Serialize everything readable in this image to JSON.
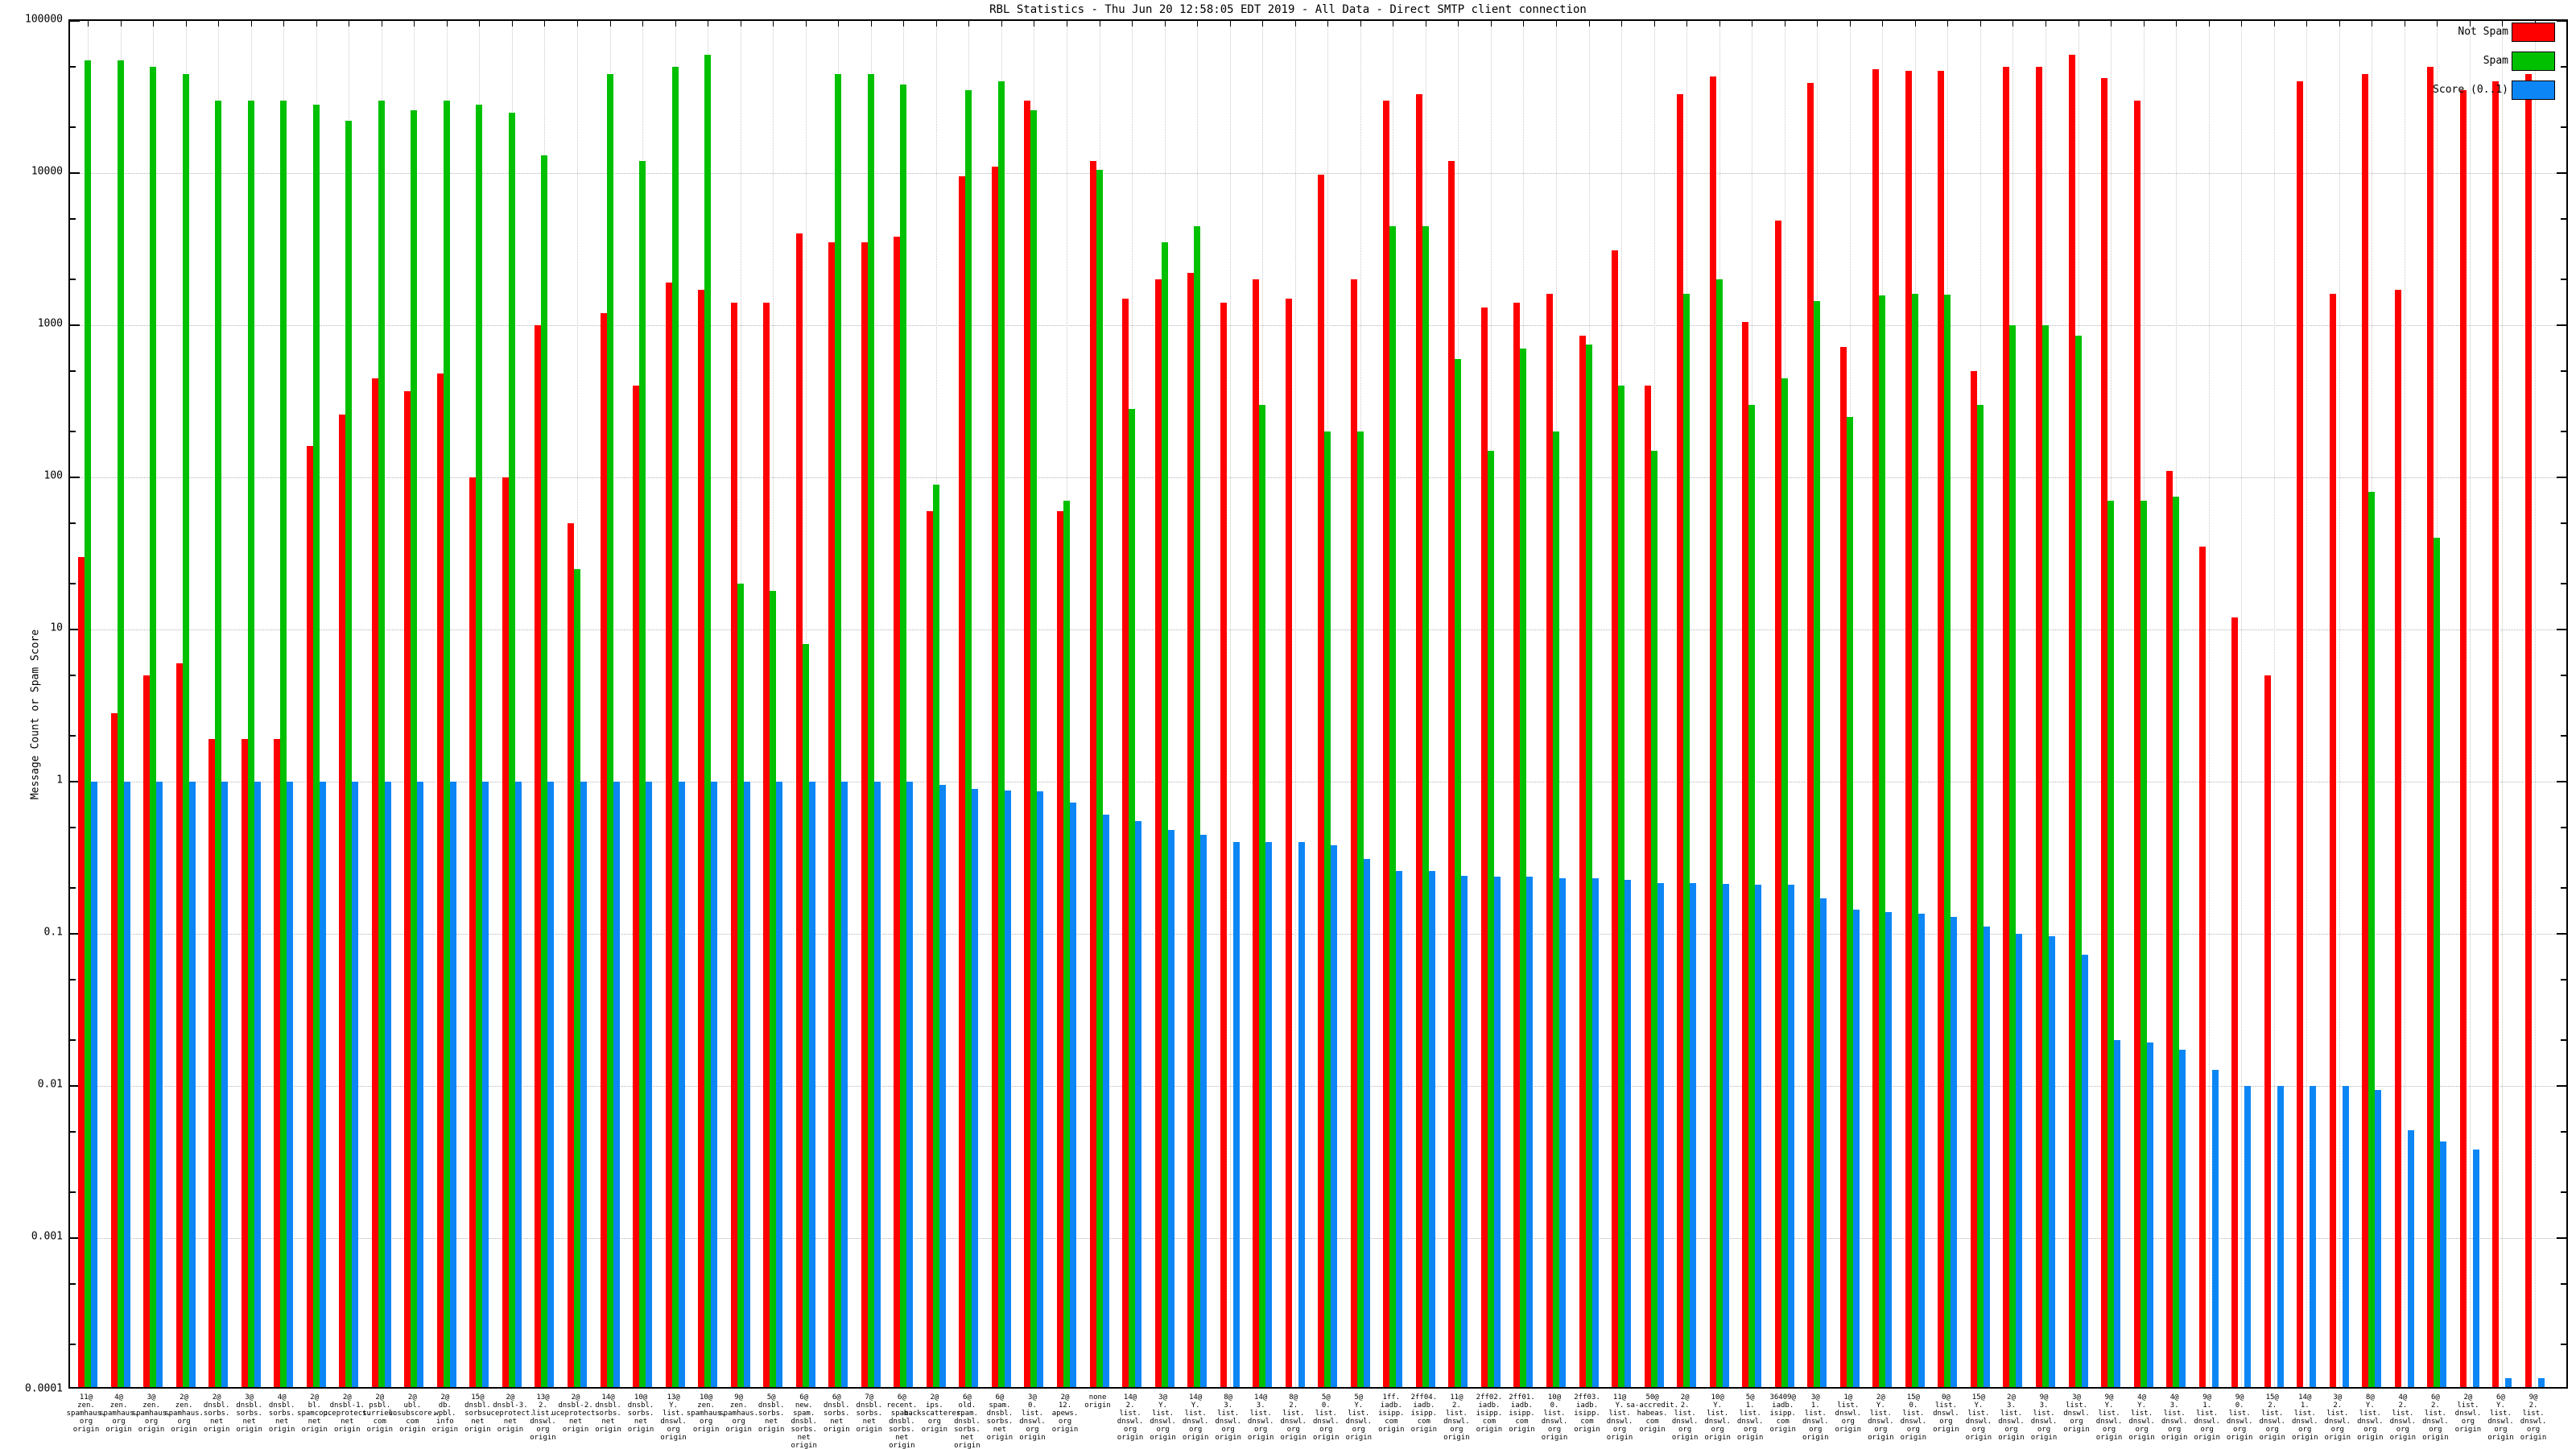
{
  "title": "RBL Statistics - Thu Jun 20 12:58:05 EDT 2019 - All Data - Direct SMTP client connection",
  "y_axis": {
    "label": "Message Count or Spam Score",
    "tick_labels": [
      "100000",
      "10000",
      "1000",
      "100",
      "10",
      "1",
      "0.1",
      "0.01",
      "0.001",
      "0.0001"
    ],
    "max": 100000,
    "min": 0.0001,
    "scale": "log"
  },
  "legend": [
    {
      "label": "Not Spam",
      "color": "#ff0000"
    },
    {
      "label": "Spam",
      "color": "#00c000"
    },
    {
      "label": "Score (0..1)",
      "color": "#0d86f5"
    }
  ],
  "chart_data": {
    "type": "bar",
    "series_names": [
      "Not Spam",
      "Spam",
      "Score (0..1)"
    ],
    "grid": true,
    "legend_position": "top-right",
    "groups": [
      {
        "label": "11@zen.spamhaus.org origin",
        "not_spam": 30,
        "spam": 55000,
        "score": 1.0
      },
      {
        "label": "4@zen.spamhaus.org origin",
        "not_spam": 2.8,
        "spam": 55000,
        "score": 1.0
      },
      {
        "label": "3@zen.spamhaus.org origin",
        "not_spam": 5,
        "spam": 50000,
        "score": 1.0
      },
      {
        "label": "2@zen.spamhaus.org origin",
        "not_spam": 6,
        "spam": 45000,
        "score": 1.0
      },
      {
        "label": "2@dnsbl.sorbs.net origin",
        "not_spam": 1.9,
        "spam": 30000,
        "score": 1.0
      },
      {
        "label": "3@dnsbl.sorbs.net origin",
        "not_spam": 1.9,
        "spam": 30000,
        "score": 1.0
      },
      {
        "label": "4@dnsbl.sorbs.net origin",
        "not_spam": 1.9,
        "spam": 30000,
        "score": 1.0
      },
      {
        "label": "2@bl.spamcop.net origin",
        "not_spam": 160,
        "spam": 28000,
        "score": 1.0
      },
      {
        "label": "2@dnsbl-1.uceprotect.net origin",
        "not_spam": 260,
        "spam": 22000,
        "score": 1.0
      },
      {
        "label": "2@psbl.surriel.com origin",
        "not_spam": 450,
        "spam": 30000,
        "score": 1.0
      },
      {
        "label": "2@ubl.unsubscore.com origin",
        "not_spam": 370,
        "spam": 26000,
        "score": 1.0
      },
      {
        "label": "2@db.wpbl.info origin",
        "not_spam": 480,
        "spam": 30000,
        "score": 1.0
      },
      {
        "label": "15@dnsbl.sorbs.net origin",
        "not_spam": 100,
        "spam": 28000,
        "score": 1.0
      },
      {
        "label": "2@dnsbl-3.uceprotect.net origin",
        "not_spam": 100,
        "spam": 25000,
        "score": 1.0
      },
      {
        "label": "13@2.list.dnswl.org origin",
        "not_spam": 1000,
        "spam": 13000,
        "score": 1.0
      },
      {
        "label": "2@dnsbl-2.uceprotect.net origin",
        "not_spam": 50,
        "spam": 25,
        "score": 1.0
      },
      {
        "label": "14@dnsbl.sorbs.net origin",
        "not_spam": 1200,
        "spam": 45000,
        "score": 1.0
      },
      {
        "label": "10@dnsbl.sorbs.net origin",
        "not_spam": 400,
        "spam": 12000,
        "score": 1.0
      },
      {
        "label": "13@Y.list.dnswl.org origin",
        "not_spam": 1900,
        "spam": 50000,
        "score": 1.0
      },
      {
        "label": "10@zen.spamhaus.org origin",
        "not_spam": 1700,
        "spam": 60000,
        "score": 1.0
      },
      {
        "label": "9@zen.spamhaus.org origin",
        "not_spam": 1400,
        "spam": 20,
        "score": 1.0
      },
      {
        "label": "5@dnsbl.sorbs.net origin",
        "not_spam": 1400,
        "spam": 18,
        "score": 1.0
      },
      {
        "label": "6@new.spam.dnsbl.sorbs.net origin",
        "not_spam": 4000,
        "spam": 8,
        "score": 1.0
      },
      {
        "label": "6@dnsbl.sorbs.net origin",
        "not_spam": 3500,
        "spam": 45000,
        "score": 1.0
      },
      {
        "label": "7@dnsbl.sorbs.net origin",
        "not_spam": 3500,
        "spam": 45000,
        "score": 1.0
      },
      {
        "label": "6@recent.spam.dnsbl.sorbs.net origin",
        "not_spam": 3800,
        "spam": 38000,
        "score": 1.0
      },
      {
        "label": "2@ips.backscatterer.org origin",
        "not_spam": 60,
        "spam": 90,
        "score": 0.95
      },
      {
        "label": "6@old.spam.dnsbl.sorbs.net origin",
        "not_spam": 9500,
        "spam": 35000,
        "score": 0.9
      },
      {
        "label": "6@spam.dnsbl.sorbs.net origin",
        "not_spam": 11000,
        "spam": 40000,
        "score": 0.87
      },
      {
        "label": "3@0.list.dnswl.org origin",
        "not_spam": 30000,
        "spam": 26000,
        "score": 0.86
      },
      {
        "label": "2@12.apews.org origin",
        "not_spam": 60,
        "spam": 70,
        "score": 0.73
      },
      {
        "label": "none origin",
        "not_spam": 12000,
        "spam": 10500,
        "score": 0.61
      },
      {
        "label": "14@2.list.dnswl.org origin",
        "not_spam": 1500,
        "spam": 280,
        "score": 0.55
      },
      {
        "label": "3@Y.list.dnswl.org origin",
        "not_spam": 2000,
        "spam": 3500,
        "score": 0.48
      },
      {
        "label": "14@Y.list.dnswl.org origin",
        "not_spam": 2200,
        "spam": 4500,
        "score": 0.45
      },
      {
        "label": "8@3.list.dnswl.org origin",
        "not_spam": 1400,
        "spam": 0,
        "score": 0.4
      },
      {
        "label": "14@3.list.dnswl.org origin",
        "not_spam": 2000,
        "spam": 300,
        "score": 0.4
      },
      {
        "label": "8@2.list.dnswl.org origin",
        "not_spam": 1500,
        "spam": 0,
        "score": 0.4
      },
      {
        "label": "5@0.list.dnswl.org origin",
        "not_spam": 9800,
        "spam": 200,
        "score": 0.38
      },
      {
        "label": "5@Y.list.dnswl.org origin",
        "not_spam": 2000,
        "spam": 200,
        "score": 0.31
      },
      {
        "label": "1ff.iadb.isipp.com origin",
        "not_spam": 30000,
        "spam": 4500,
        "score": 0.26
      },
      {
        "label": "2ff04.iadb.isipp.com origin",
        "not_spam": 33000,
        "spam": 4500,
        "score": 0.26
      },
      {
        "label": "11@2.list.dnswl.org origin",
        "not_spam": 12000,
        "spam": 600,
        "score": 0.24
      },
      {
        "label": "2ff02.iadb.isipp.com origin",
        "not_spam": 1300,
        "spam": 150,
        "score": 0.238
      },
      {
        "label": "2ff01.iadb.isipp.com origin",
        "not_spam": 1400,
        "spam": 700,
        "score": 0.238
      },
      {
        "label": "10@0.list.dnswl.org origin",
        "not_spam": 1600,
        "spam": 200,
        "score": 0.233
      },
      {
        "label": "2ff03.iadb.isipp.com origin",
        "not_spam": 850,
        "spam": 750,
        "score": 0.233
      },
      {
        "label": "11@Y.list.dnswl.org origin",
        "not_spam": 3100,
        "spam": 400,
        "score": 0.227
      },
      {
        "label": "50@sa-accredit.habeas.com origin",
        "not_spam": 400,
        "spam": 150,
        "score": 0.216
      },
      {
        "label": "2@2.list.dnswl.org origin",
        "not_spam": 33000,
        "spam": 1600,
        "score": 0.216
      },
      {
        "label": "10@Y.list.dnswl.org origin",
        "not_spam": 43000,
        "spam": 2000,
        "score": 0.214
      },
      {
        "label": "5@1.list.dnswl.org origin",
        "not_spam": 1050,
        "spam": 300,
        "score": 0.211
      },
      {
        "label": "36409@iadb.isipp.com origin",
        "not_spam": 4900,
        "spam": 450,
        "score": 0.211
      },
      {
        "label": "3@1.list.dnswl.org origin",
        "not_spam": 39000,
        "spam": 1450,
        "score": 0.17
      },
      {
        "label": "1@list.dnswl.org origin",
        "not_spam": 720,
        "spam": 250,
        "score": 0.144
      },
      {
        "label": "2@Y.list.dnswl.org origin",
        "not_spam": 48000,
        "spam": 1560,
        "score": 0.139
      },
      {
        "label": "15@0.list.dnswl.org origin",
        "not_spam": 47000,
        "spam": 1600,
        "score": 0.135
      },
      {
        "label": "0@list.dnswl.org origin",
        "not_spam": 47000,
        "spam": 1580,
        "score": 0.129
      },
      {
        "label": "15@Y.list.dnswl.org origin",
        "not_spam": 500,
        "spam": 300,
        "score": 0.112
      },
      {
        "label": "2@3.list.dnswl.org origin",
        "not_spam": 50000,
        "spam": 1000,
        "score": 0.1
      },
      {
        "label": "9@3.list.dnswl.org origin",
        "not_spam": 50000,
        "spam": 1000,
        "score": 0.097
      },
      {
        "label": "3@list.dnswl.org origin",
        "not_spam": 60000,
        "spam": 850,
        "score": 0.073
      },
      {
        "label": "9@Y.list.dnswl.org origin",
        "not_spam": 42000,
        "spam": 70,
        "score": 0.02
      },
      {
        "label": "4@Y.list.dnswl.org origin",
        "not_spam": 30000,
        "spam": 70,
        "score": 0.0194
      },
      {
        "label": "4@3.list.dnswl.org origin",
        "not_spam": 110,
        "spam": 75,
        "score": 0.0174
      },
      {
        "label": "9@1.list.dnswl.org origin",
        "not_spam": 35,
        "spam": 0,
        "score": 0.0128
      },
      {
        "label": "9@0.list.dnswl.org origin",
        "not_spam": 12,
        "spam": 0,
        "score": 0.01
      },
      {
        "label": "15@2.list.dnswl.org origin",
        "not_spam": 5,
        "spam": 0,
        "score": 0.01
      },
      {
        "label": "14@1.list.dnswl.org origin",
        "not_spam": 40000,
        "spam": 0,
        "score": 0.01
      },
      {
        "label": "3@2.list.dnswl.org origin",
        "not_spam": 1600,
        "spam": 0,
        "score": 0.01
      },
      {
        "label": "8@Y.list.dnswl.org origin",
        "not_spam": 45000,
        "spam": 80,
        "score": 0.0094
      },
      {
        "label": "4@2.list.dnswl.org origin",
        "not_spam": 1700,
        "spam": 0,
        "score": 0.0051
      },
      {
        "label": "6@2.list.dnswl.org origin",
        "not_spam": 50000,
        "spam": 40,
        "score": 0.0043
      },
      {
        "label": "2@list.dnswl.org origin",
        "not_spam": 35000,
        "spam": 0,
        "score": 0.0038
      },
      {
        "label": "6@Y.list.dnswl.org origin",
        "not_spam": 40000,
        "spam": 0,
        "score": 0.00012
      },
      {
        "label": "9@2.list.dnswl.org origin",
        "not_spam": 45000,
        "spam": 0,
        "score": 0.00012
      }
    ]
  }
}
